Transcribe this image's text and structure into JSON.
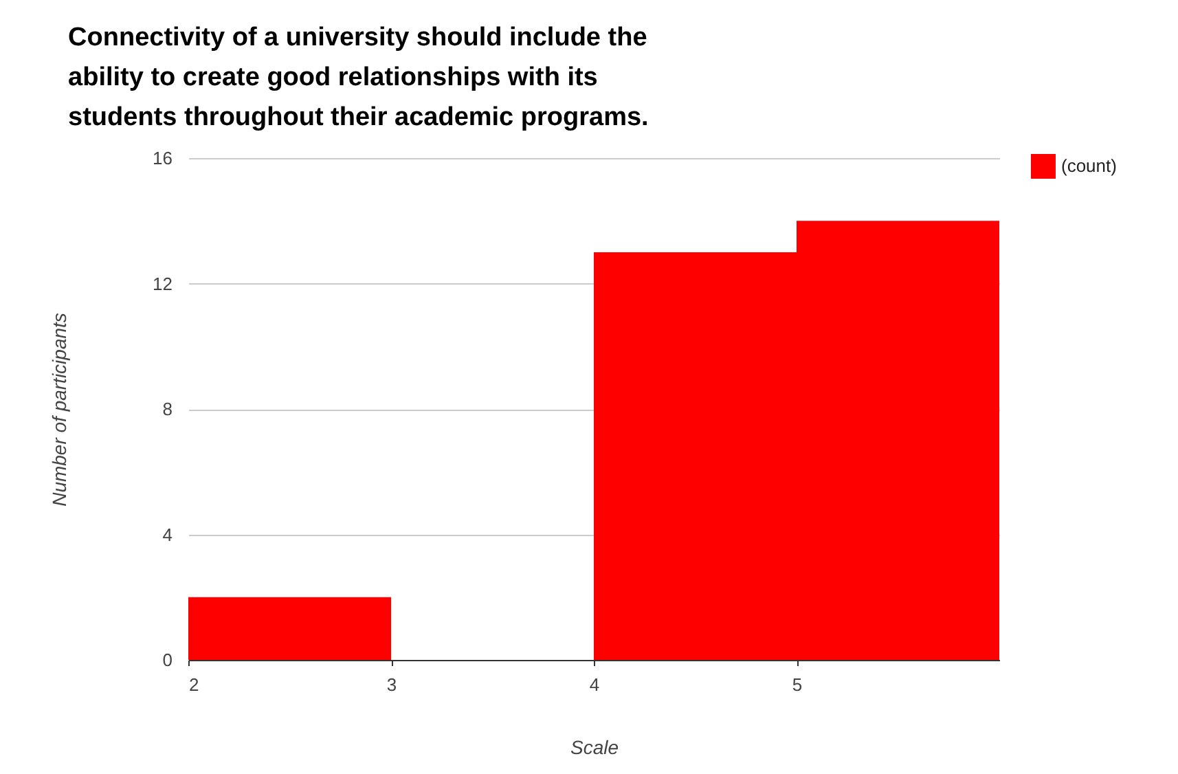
{
  "chart_data": {
    "type": "histogram",
    "title": "Connectivity of a university should include the ability to create good relationships with its students throughout their academic programs.",
    "xlabel": "Scale",
    "ylabel": "Number of participants",
    "bins": [
      2,
      3,
      4,
      5,
      6
    ],
    "series": [
      {
        "name": "(count)",
        "color": "#ff0000",
        "values": [
          2,
          0,
          13,
          14
        ]
      }
    ],
    "xlim": [
      2,
      6
    ],
    "xticks": [
      2,
      3,
      4,
      5
    ],
    "ylim": [
      0,
      16
    ],
    "yticks": [
      0,
      4,
      8,
      12,
      16
    ],
    "grid": "y",
    "legend": "top right"
  }
}
